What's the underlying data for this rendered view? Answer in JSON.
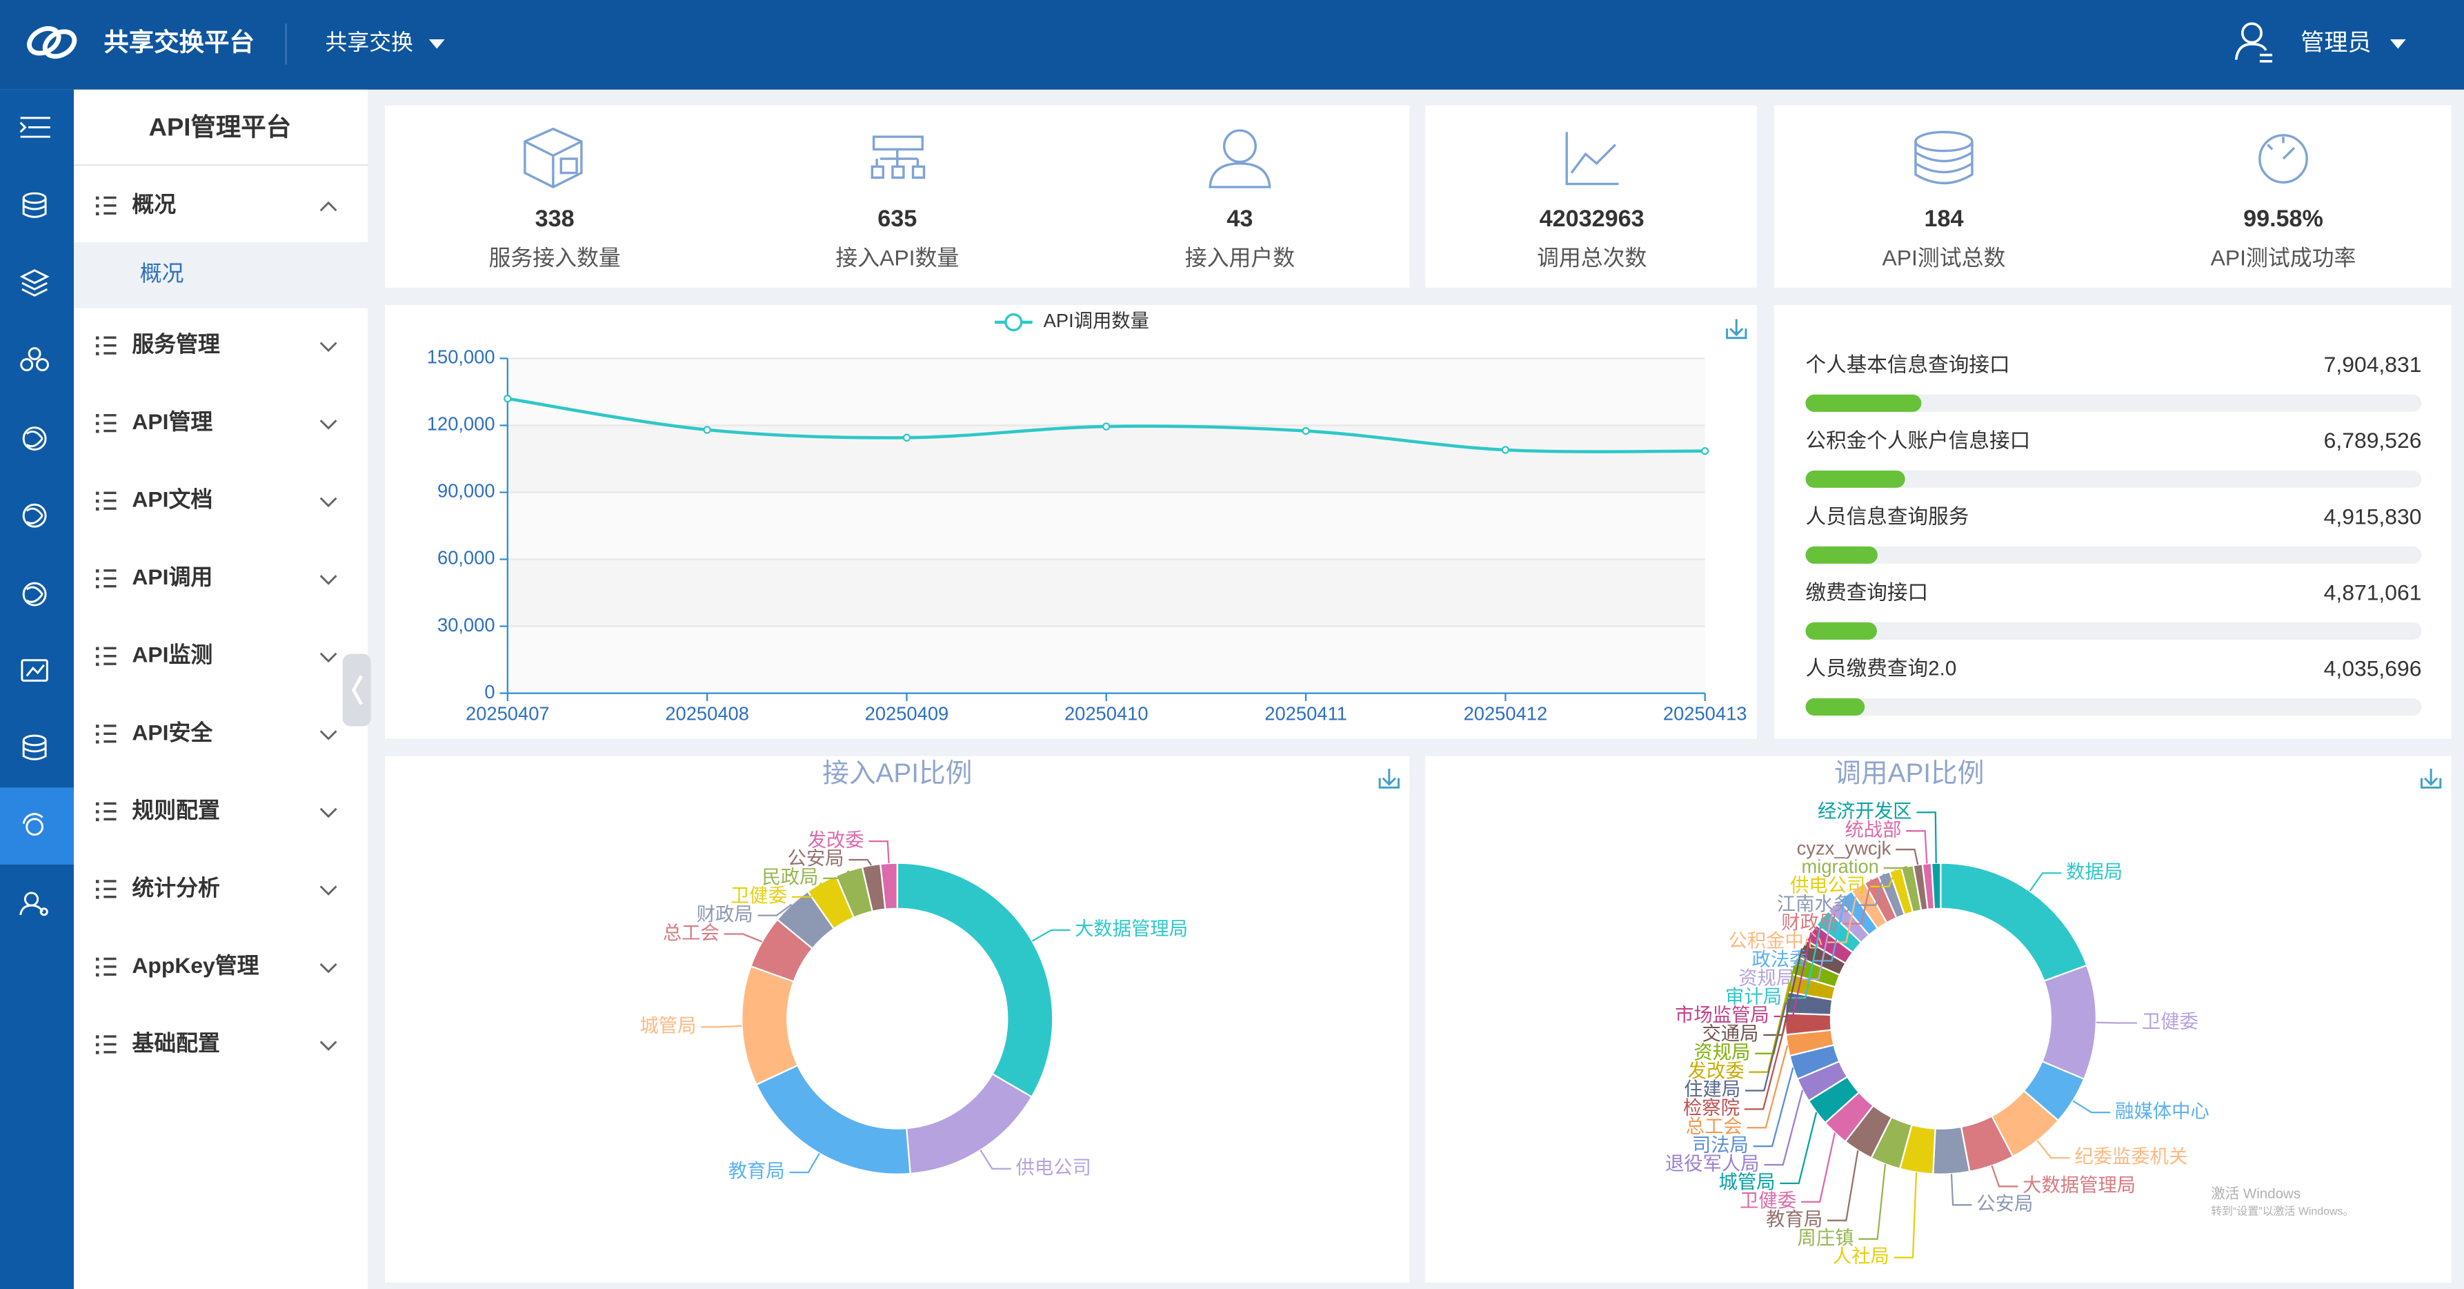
{
  "header": {
    "title": "共享交换平台",
    "nav": "共享交换",
    "user": "管理员"
  },
  "sidebar": {
    "title": "API管理平台",
    "menu": [
      "概况",
      "服务管理",
      "API管理",
      "API文档",
      "API调用",
      "API监测",
      "API安全",
      "规则配置",
      "统计分析",
      "AppKey管理",
      "基础配置"
    ],
    "submenu": [
      "概况"
    ]
  },
  "stats": [
    {
      "value": 338,
      "label": "服务接入数量"
    },
    {
      "value": 635,
      "label": "接入API数量"
    },
    {
      "value": 43,
      "label": "接入用户数"
    },
    {
      "value": 42032963,
      "label": "调用总次数"
    },
    {
      "value": 184,
      "label": "API测试总数"
    },
    {
      "value": "99.58%",
      "label": "API测试成功率"
    }
  ],
  "chart_data": [
    {
      "type": "line",
      "categories": [
        "20250407",
        "20250408",
        "20250409",
        "20250410",
        "20250411",
        "20250412",
        "20250413"
      ],
      "series": [
        {
          "name": "API调用数量",
          "color": "#2ec7c9",
          "values": [
            132000,
            118000,
            114500,
            119500,
            117500,
            109000,
            108500
          ]
        }
      ],
      "ylim": [
        0,
        150000
      ],
      "yticks": [
        0,
        {
          "value": 30000,
          "label": "30,000"
        },
        {
          "value": 60000,
          "label": "60,000"
        },
        {
          "value": 90000,
          "label": "90,000"
        },
        {
          "value": 120000,
          "label": "120,000"
        },
        {
          "value": 150000,
          "label": "150,000"
        }
      ],
      "grid": true,
      "legend": "top"
    },
    {
      "type": "bar",
      "orientation": "horizontal",
      "color": "#67c23a",
      "categories": [
        "个人基本信息查询接口",
        "公积金个人账户信息接口",
        "人员信息查询服务",
        "缴费查询接口",
        "人员缴费查询2.0"
      ],
      "values": [
        7904831,
        6789526,
        4915830,
        4871061,
        4035696
      ],
      "value_labels": [
        "7,904,831",
        "6,789,526",
        "4,915,830",
        "4,871,061",
        "4,035,696"
      ],
      "xlim": [
        0,
        42032963
      ]
    },
    {
      "type": "pie",
      "title": "接入API比例",
      "categories": [
        "大数据管理局",
        "供电公司",
        "教育局",
        "城管局",
        "总工会",
        "财政局",
        "卫健委",
        "民政局",
        "公安局",
        "发改委"
      ],
      "values": [
        212,
        97,
        123,
        79,
        35,
        27,
        21,
        18,
        12,
        11
      ],
      "colors": [
        "#2ec7c9",
        "#b6a2de",
        "#5ab1ef",
        "#ffb980",
        "#d87a80",
        "#8d98b3",
        "#e5cf0d",
        "#97b552",
        "#95706d",
        "#dc69aa"
      ]
    },
    {
      "type": "pie",
      "title": "调用API比例",
      "categories": [
        "数据局",
        "卫健委",
        "融媒体中心",
        "纪委监委机关",
        "大数据管理局",
        "公安局",
        "人社局",
        "周庄镇",
        "教育局",
        "卫健委",
        "城管局",
        "退役军人局",
        "司法局",
        "总工会",
        "检察院",
        "住建局",
        "发改委",
        "资规局",
        "交通局",
        "市场监管局",
        "审计局",
        "资规局",
        "政法委",
        "公积金中心",
        "财政局",
        "江南水务",
        "供电公司",
        "migration",
        "cyzx_ywcjk",
        "统战部",
        "经济开发区"
      ],
      "values": [
        62,
        38,
        16,
        19,
        15,
        12,
        11,
        10,
        10,
        9,
        9,
        8,
        8,
        7,
        7,
        7,
        6,
        6,
        6,
        6,
        6,
        5,
        5,
        5,
        5,
        4,
        4,
        4,
        3,
        3,
        3
      ],
      "colors": [
        "#2ec7c9",
        "#b6a2de",
        "#5ab1ef",
        "#ffb980",
        "#d87a80",
        "#8d98b3",
        "#e5cf0d",
        "#97b552",
        "#95706d",
        "#dc69aa",
        "#07a2a4",
        "#9a7fd1",
        "#588dd5",
        "#f5994e",
        "#c05050",
        "#59678c",
        "#c9ab00",
        "#7eb00a",
        "#6f5553",
        "#c14089",
        "#2ec7c9",
        "#b6a2de",
        "#5ab1ef",
        "#ffb980",
        "#d87a80",
        "#8d98b3",
        "#e5cf0d",
        "#97b552",
        "#95706d",
        "#dc69aa",
        "#07a2a4"
      ]
    }
  ],
  "watermark": [
    "激活 Windows",
    "转到“设置”以激活 Windows。"
  ]
}
